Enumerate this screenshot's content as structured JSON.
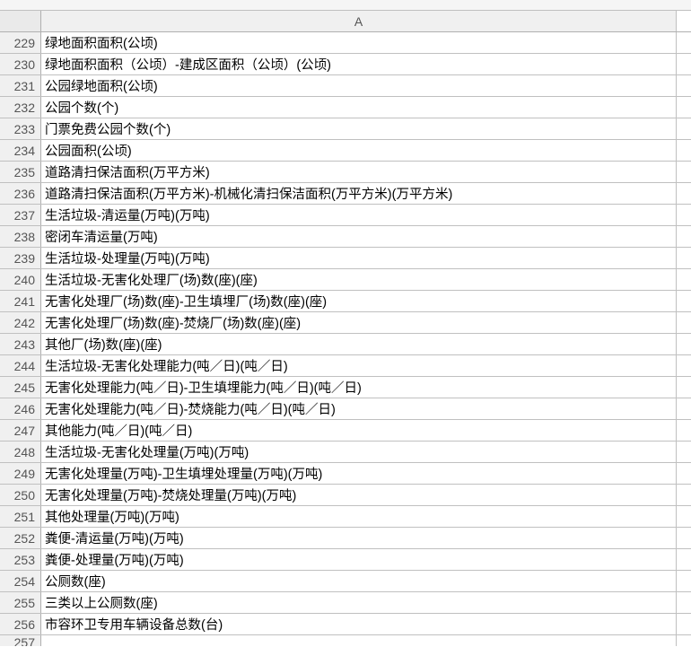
{
  "columnHeader": "A",
  "startRow": 229,
  "nextRowStub": 257,
  "colors": {
    "gridline": "#c0c0c0",
    "headerBg": "#f0f0f0",
    "headerBorder": "#b0b0b0",
    "text": "#000000",
    "headerText": "#555555",
    "background": "#ffffff"
  },
  "rows": [
    {
      "num": 229,
      "value": "绿地面积面积(公顷)"
    },
    {
      "num": 230,
      "value": "绿地面积面积（公顷）-建成区面积（公顷）(公顷)"
    },
    {
      "num": 231,
      "value": "公园绿地面积(公顷)"
    },
    {
      "num": 232,
      "value": "公园个数(个)"
    },
    {
      "num": 233,
      "value": "门票免费公园个数(个)"
    },
    {
      "num": 234,
      "value": "公园面积(公顷)"
    },
    {
      "num": 235,
      "value": "道路清扫保洁面积(万平方米)"
    },
    {
      "num": 236,
      "value": "道路清扫保洁面积(万平方米)-机械化清扫保洁面积(万平方米)(万平方米)"
    },
    {
      "num": 237,
      "value": "生活垃圾-清运量(万吨)(万吨)"
    },
    {
      "num": 238,
      "value": "密闭车清运量(万吨)"
    },
    {
      "num": 239,
      "value": "生活垃圾-处理量(万吨)(万吨)"
    },
    {
      "num": 240,
      "value": "生活垃圾-无害化处理厂(场)数(座)(座)"
    },
    {
      "num": 241,
      "value": "无害化处理厂(场)数(座)-卫生填埋厂(场)数(座)(座)"
    },
    {
      "num": 242,
      "value": "无害化处理厂(场)数(座)-焚烧厂(场)数(座)(座)"
    },
    {
      "num": 243,
      "value": "其他厂(场)数(座)(座)"
    },
    {
      "num": 244,
      "value": "生活垃圾-无害化处理能力(吨／日)(吨／日)"
    },
    {
      "num": 245,
      "value": "无害化处理能力(吨／日)-卫生填埋能力(吨／日)(吨／日)"
    },
    {
      "num": 246,
      "value": "无害化处理能力(吨／日)-焚烧能力(吨／日)(吨／日)"
    },
    {
      "num": 247,
      "value": "其他能力(吨／日)(吨／日)"
    },
    {
      "num": 248,
      "value": "生活垃圾-无害化处理量(万吨)(万吨)"
    },
    {
      "num": 249,
      "value": "无害化处理量(万吨)-卫生填埋处理量(万吨)(万吨)"
    },
    {
      "num": 250,
      "value": "无害化处理量(万吨)-焚烧处理量(万吨)(万吨)"
    },
    {
      "num": 251,
      "value": "其他处理量(万吨)(万吨)"
    },
    {
      "num": 252,
      "value": "粪便-清运量(万吨)(万吨)"
    },
    {
      "num": 253,
      "value": "粪便-处理量(万吨)(万吨)"
    },
    {
      "num": 254,
      "value": "公厕数(座)"
    },
    {
      "num": 255,
      "value": "三类以上公厕数(座)"
    },
    {
      "num": 256,
      "value": "市容环卫专用车辆设备总数(台)"
    }
  ]
}
